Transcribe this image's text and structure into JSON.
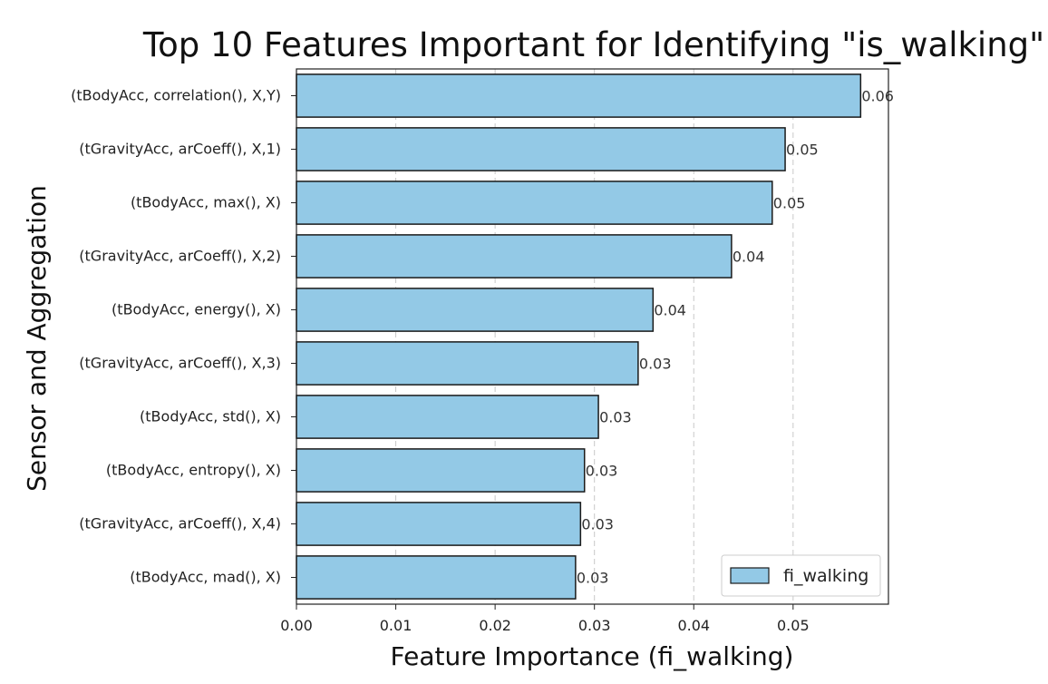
{
  "chart_data": {
    "type": "bar",
    "orientation": "horizontal",
    "title": "Top 10 Features Important for Identifying \"is_walking\"",
    "xlabel": "Feature Importance (fi_walking)",
    "ylabel": "Sensor and Aggregation",
    "xlim": [
      0,
      0.0596
    ],
    "xticks": [
      "0.00",
      "0.01",
      "0.02",
      "0.03",
      "0.04",
      "0.05"
    ],
    "grid": "x-dashed",
    "legend": {
      "position": "bottom-right",
      "entries": [
        "fi_walking"
      ]
    },
    "bar_color": "#93c9e6",
    "bar_edge_color": "#1a1a1a",
    "categories": [
      "(tBodyAcc, correlation(), X,Y)",
      "(tGravityAcc, arCoeff(), X,1)",
      "(tBodyAcc, max(), X)",
      "(tGravityAcc, arCoeff(), X,2)",
      "(tBodyAcc, energy(), X)",
      "(tGravityAcc, arCoeff(), X,3)",
      "(tBodyAcc, std(), X)",
      "(tBodyAcc, entropy(), X)",
      "(tGravityAcc, arCoeff(), X,4)",
      "(tBodyAcc, mad(), X)"
    ],
    "series": [
      {
        "name": "fi_walking",
        "values": [
          0.0568,
          0.0492,
          0.0479,
          0.0438,
          0.0359,
          0.0344,
          0.0304,
          0.029,
          0.0286,
          0.0281
        ],
        "labels": [
          "0.06",
          "0.05",
          "0.05",
          "0.04",
          "0.04",
          "0.03",
          "0.03",
          "0.03",
          "0.03",
          "0.03"
        ]
      }
    ]
  }
}
